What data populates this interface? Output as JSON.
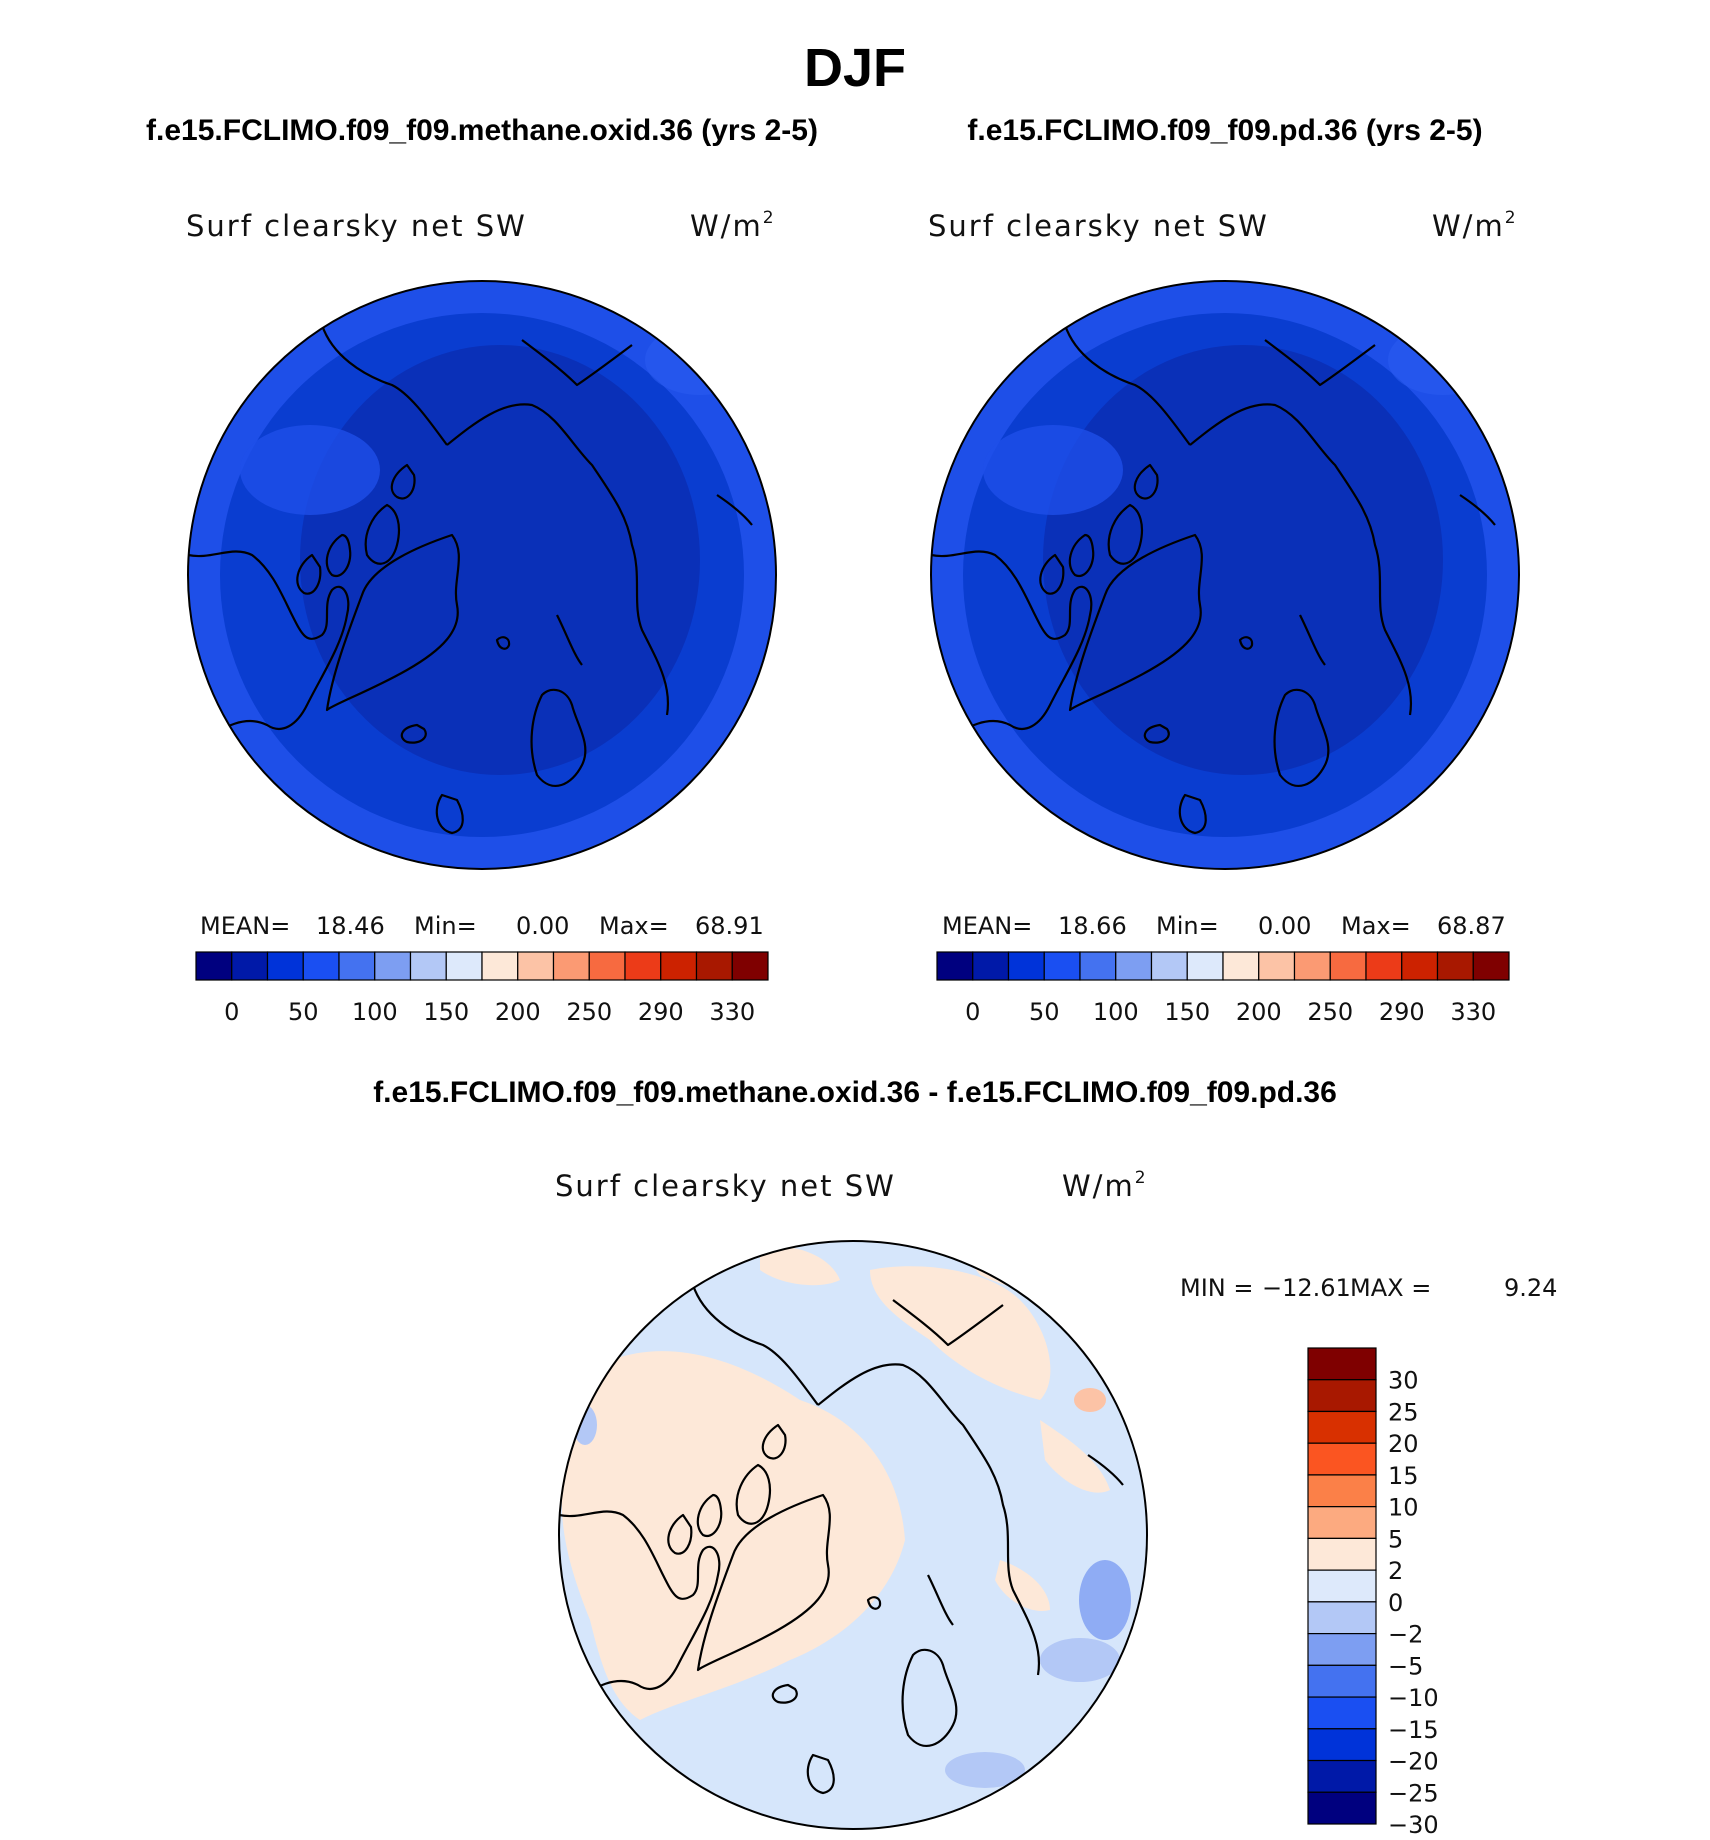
{
  "title": "DJF",
  "panels": [
    {
      "id": "test",
      "case": "f.e15.FCLIMO.f09_f09.methane.oxid.36 (yrs 2-5)",
      "variable": "Surf clearsky net SW",
      "units_base": "W/m",
      "units_exp": "2",
      "stats": {
        "mean_label": "MEAN=",
        "mean": "18.46",
        "min_label": "Min=",
        "min": "0.00",
        "max_label": "Max=",
        "max": "68.91"
      }
    },
    {
      "id": "control",
      "case": "f.e15.FCLIMO.f09_f09.pd.36 (yrs 2-5)",
      "variable": "Surf clearsky net SW",
      "units_base": "W/m",
      "units_exp": "2",
      "stats": {
        "mean_label": "MEAN=",
        "mean": "18.66",
        "min_label": "Min=",
        "min": "0.00",
        "max_label": "Max=",
        "max": "68.87"
      }
    }
  ],
  "diff_panel": {
    "case": "f.e15.FCLIMO.f09_f09.methane.oxid.36 - f.e15.FCLIMO.f09_f09.pd.36",
    "variable": "Surf clearsky net SW",
    "units_base": "W/m",
    "units_exp": "2",
    "stats": {
      "min_label": "MIN =",
      "min": "−12.61",
      "max_label": "MAX =",
      "max": "9.24"
    }
  },
  "colorbar_main": {
    "colors": [
      "#00007f",
      "#0019a8",
      "#0033d9",
      "#1a4ff2",
      "#4472f0",
      "#7d9ef2",
      "#b3c8f6",
      "#dde9fb",
      "#fde8d8",
      "#fcc3a6",
      "#fb9a73",
      "#f76a40",
      "#ec3b18",
      "#cc2200",
      "#a81800",
      "#7f0000"
    ],
    "tick_labels": [
      "0",
      "50",
      "100",
      "150",
      "200",
      "250",
      "290",
      "330"
    ]
  },
  "colorbar_diff": {
    "colors": [
      "#7f0000",
      "#a81800",
      "#d83000",
      "#fb5521",
      "#fb8048",
      "#fcaa80",
      "#fde8d8",
      "#dde9fb",
      "#b3c8f6",
      "#7d9ef2",
      "#4472f0",
      "#1a4ff2",
      "#0033d9",
      "#0019a8",
      "#00007f"
    ],
    "tick_labels": [
      "30",
      "25",
      "20",
      "15",
      "10",
      "5",
      "2",
      "0",
      "−2",
      "−5",
      "−10",
      "−15",
      "−20",
      "−25",
      "−30"
    ]
  },
  "map_colors": {
    "main_outer": "#1e4fe8",
    "main_mid": "#0a3dd0",
    "main_inner": "#0a30b8",
    "diff_background": "#d6e6fb",
    "diff_positive": "#fde8d8",
    "diff_negative_strong": "#7d9ef2",
    "diff_negative": "#b3c8f6"
  }
}
